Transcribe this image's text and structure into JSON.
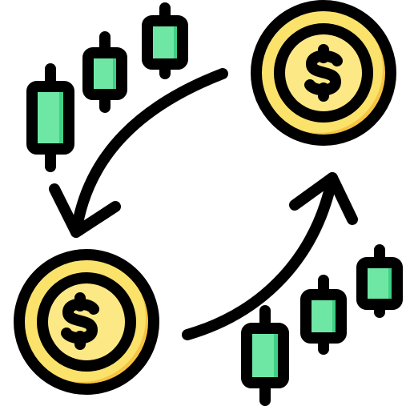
{
  "icon": {
    "name": "currency-exchange-trading",
    "elements": [
      "coin-icon",
      "dollar-sign-icon",
      "circular-exchange-arrows-icon",
      "candlestick-chart-icon"
    ],
    "coin_symbol": "$",
    "candlesticks_top_left": 3,
    "candlesticks_bottom_right": 3
  },
  "colors": {
    "outline": "#000000",
    "coin_fill": "#fbe26b",
    "coin_inner_fill": "#fde886",
    "coin_shadow": "#f6c343",
    "candle_fill": "#6ee7a4",
    "candle_shade": "#3fcf84",
    "background": "#ffffff"
  }
}
